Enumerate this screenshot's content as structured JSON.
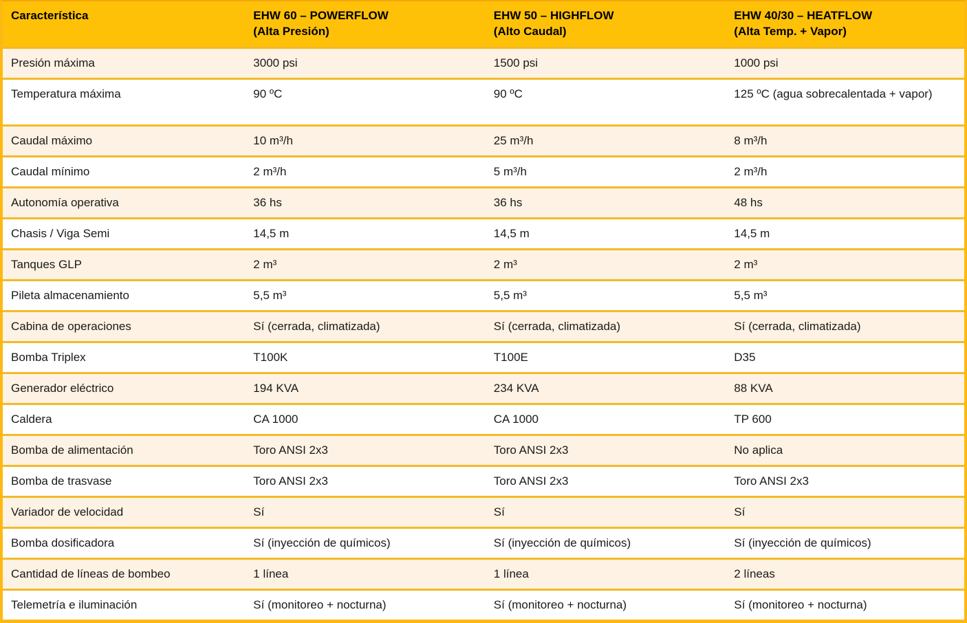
{
  "colors": {
    "header_bg": "#ffc107",
    "row_shaded_bg": "#fdf2e3",
    "row_plain_bg": "#ffffff",
    "border": "#f3ba27",
    "outer_border": "#fdb913",
    "header_text": "#000000",
    "body_text": "#1a1a1a"
  },
  "table": {
    "columns": [
      {
        "label": "Característica",
        "sub": ""
      },
      {
        "label": "EHW 60 – POWERFLOW",
        "sub": "(Alta Presión)"
      },
      {
        "label": "EHW 50 – HIGHFLOW",
        "sub": "(Alto Caudal)"
      },
      {
        "label": "EHW 40/30 – HEATFLOW",
        "sub": "(Alta Temp. + Vapor)"
      }
    ],
    "rows": [
      {
        "feature": "Presión máxima",
        "values": [
          "3000 psi",
          "1500 psi",
          "1000 psi"
        ]
      },
      {
        "feature": "Temperatura máxima",
        "values": [
          "90 ºC",
          "90 ºC",
          "125 ºC (agua sobrecalentada + vapor)"
        ]
      },
      {
        "feature": "Caudal máximo",
        "values": [
          "10 m³/h",
          "25 m³/h",
          "8 m³/h"
        ]
      },
      {
        "feature": "Caudal mínimo",
        "values": [
          "2 m³/h",
          "5 m³/h",
          "2 m³/h"
        ]
      },
      {
        "feature": "Autonomía operativa",
        "values": [
          "36 hs",
          "36 hs",
          "48 hs"
        ]
      },
      {
        "feature": "Chasis / Viga Semi",
        "values": [
          "14,5 m",
          "14,5 m",
          "14,5 m"
        ]
      },
      {
        "feature": "Tanques GLP",
        "values": [
          "2 m³",
          "2 m³",
          "2 m³"
        ]
      },
      {
        "feature": "Pileta almacenamiento",
        "values": [
          "5,5 m³",
          "5,5 m³",
          "5,5 m³"
        ]
      },
      {
        "feature": "Cabina de operaciones",
        "values": [
          "Sí (cerrada, climatizada)",
          "Sí (cerrada, climatizada)",
          "Sí (cerrada, climatizada)"
        ]
      },
      {
        "feature": "Bomba Triplex",
        "values": [
          "T100K",
          "T100E",
          "D35"
        ]
      },
      {
        "feature": "Generador eléctrico",
        "values": [
          "194 KVA",
          "234 KVA",
          "88 KVA"
        ]
      },
      {
        "feature": "Caldera",
        "values": [
          "CA 1000",
          "CA 1000",
          "TP 600"
        ]
      },
      {
        "feature": "Bomba de alimentación",
        "values": [
          "Toro ANSI 2x3",
          "Toro ANSI 2x3",
          "No aplica"
        ]
      },
      {
        "feature": "Bomba de trasvase",
        "values": [
          "Toro ANSI 2x3",
          "Toro ANSI 2x3",
          "Toro ANSI 2x3"
        ]
      },
      {
        "feature": "Variador de velocidad",
        "values": [
          "Sí",
          "Sí",
          "Sí"
        ]
      },
      {
        "feature": "Bomba dosificadora",
        "values": [
          "Sí (inyección de químicos)",
          "Sí (inyección de químicos)",
          "Sí (inyección de químicos)"
        ]
      },
      {
        "feature": "Cantidad de líneas de bombeo",
        "values": [
          "1 línea",
          "1 línea",
          "2 líneas"
        ]
      },
      {
        "feature": "Telemetría e iluminación",
        "values": [
          "Sí (monitoreo + nocturna)",
          "Sí (monitoreo + nocturna)",
          "Sí (monitoreo + nocturna)"
        ]
      }
    ]
  }
}
